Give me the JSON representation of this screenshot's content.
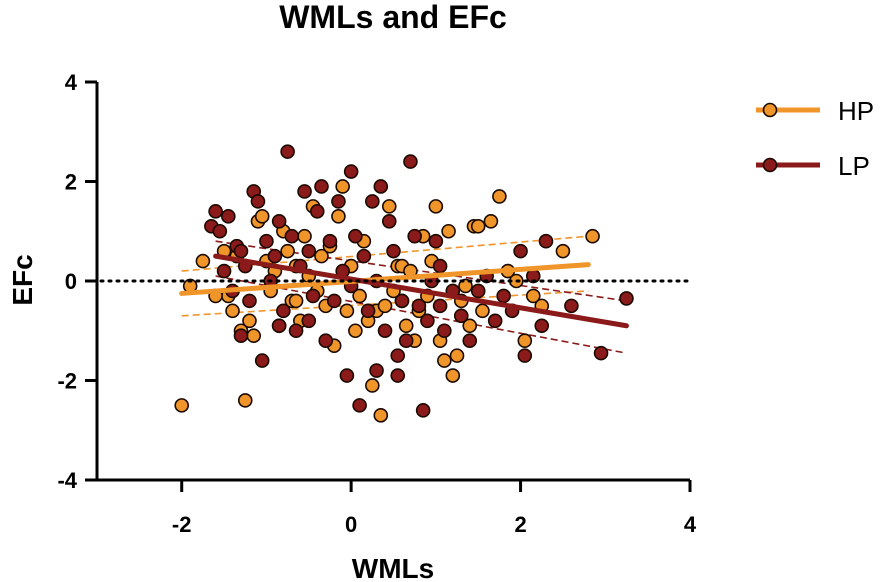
{
  "chart_data": {
    "type": "scatter",
    "title": "WMLs and EFc",
    "xlabel": "WMLs",
    "ylabel": "EFc",
    "xlim": [
      -3,
      4
    ],
    "ylim": [
      -4,
      4
    ],
    "xticks": [
      -2,
      0,
      2,
      4
    ],
    "yticks": [
      -4,
      -2,
      0,
      2,
      4
    ],
    "x_tick_labels": [
      "-2",
      "0",
      "2",
      "4"
    ],
    "y_tick_labels": [
      "-4",
      "-2",
      "0",
      "2",
      "4"
    ],
    "reference_line": {
      "y": 0,
      "style": "dotted"
    },
    "legend_position": "top-right",
    "series": [
      {
        "name": "HP",
        "color": "#F0952A",
        "fit": {
          "x": [
            -2.0,
            2.8
          ],
          "y": [
            -0.25,
            0.33
          ]
        },
        "ci_upper": {
          "x": [
            -2.0,
            2.8
          ],
          "y": [
            0.2,
            0.9
          ]
        },
        "ci_lower": {
          "x": [
            -2.0,
            2.8
          ],
          "y": [
            -0.7,
            -0.2
          ]
        },
        "points": [
          [
            -2.0,
            -2.5
          ],
          [
            -1.9,
            -0.1
          ],
          [
            -1.75,
            0.4
          ],
          [
            -1.5,
            0.6
          ],
          [
            -1.45,
            -0.3
          ],
          [
            -1.4,
            -0.6
          ],
          [
            -1.35,
            0.5
          ],
          [
            -1.3,
            -1.0
          ],
          [
            -1.25,
            -2.4
          ],
          [
            -1.2,
            -0.8
          ],
          [
            -1.15,
            -1.1
          ],
          [
            -1.1,
            1.2
          ],
          [
            -1.05,
            1.3
          ],
          [
            -1.0,
            0.4
          ],
          [
            -0.95,
            -0.2
          ],
          [
            -0.9,
            0.2
          ],
          [
            -0.85,
            -0.9
          ],
          [
            -0.8,
            1.0
          ],
          [
            -0.75,
            0.6
          ],
          [
            -0.7,
            -0.4
          ],
          [
            -0.65,
            0.3
          ],
          [
            -0.6,
            -0.8
          ],
          [
            -0.55,
            0.9
          ],
          [
            -0.5,
            0.1
          ],
          [
            -0.45,
            1.5
          ],
          [
            -0.4,
            -0.2
          ],
          [
            -0.35,
            0.5
          ],
          [
            -0.3,
            -0.5
          ],
          [
            -0.25,
            0.7
          ],
          [
            -0.2,
            -1.3
          ],
          [
            -0.15,
            1.3
          ],
          [
            -0.1,
            1.9
          ],
          [
            -0.05,
            -0.6
          ],
          [
            0.0,
            0.3
          ],
          [
            0.05,
            -1.0
          ],
          [
            0.1,
            -0.3
          ],
          [
            0.15,
            0.8
          ],
          [
            0.2,
            -0.8
          ],
          [
            0.25,
            -2.1
          ],
          [
            0.3,
            -0.6
          ],
          [
            0.35,
            -2.7
          ],
          [
            0.4,
            -0.5
          ],
          [
            0.45,
            1.5
          ],
          [
            0.5,
            -0.2
          ],
          [
            0.55,
            0.3
          ],
          [
            0.6,
            0.3
          ],
          [
            0.65,
            -0.9
          ],
          [
            0.7,
            0.2
          ],
          [
            0.75,
            -1.2
          ],
          [
            0.8,
            -0.6
          ],
          [
            0.85,
            0.9
          ],
          [
            0.9,
            -0.3
          ],
          [
            0.95,
            0.4
          ],
          [
            1.0,
            1.5
          ],
          [
            1.05,
            -1.2
          ],
          [
            1.1,
            -1.6
          ],
          [
            1.15,
            1.0
          ],
          [
            1.2,
            -1.9
          ],
          [
            1.25,
            -1.5
          ],
          [
            1.3,
            -0.4
          ],
          [
            1.35,
            -0.1
          ],
          [
            1.4,
            -0.9
          ],
          [
            1.45,
            1.1
          ],
          [
            1.5,
            1.1
          ],
          [
            1.55,
            -0.6
          ],
          [
            1.65,
            1.2
          ],
          [
            1.75,
            1.7
          ],
          [
            1.85,
            0.2
          ],
          [
            1.95,
            0.0
          ],
          [
            2.05,
            -1.2
          ],
          [
            2.15,
            -0.3
          ],
          [
            2.25,
            -0.5
          ],
          [
            2.5,
            0.6
          ],
          [
            2.85,
            0.9
          ],
          [
            -0.65,
            -0.4
          ],
          [
            0.6,
            -0.4
          ],
          [
            -1.6,
            -0.3
          ]
        ]
      },
      {
        "name": "LP",
        "color": "#8B1A1A",
        "fit": {
          "x": [
            -1.6,
            3.25
          ],
          "y": [
            0.5,
            -0.9
          ]
        },
        "ci_upper": {
          "x": [
            -1.6,
            3.25
          ],
          "y": [
            0.8,
            -0.4
          ]
        },
        "ci_lower": {
          "x": [
            -1.6,
            3.25
          ],
          "y": [
            0.1,
            -1.45
          ]
        },
        "points": [
          [
            -1.65,
            1.1
          ],
          [
            -1.6,
            1.4
          ],
          [
            -1.55,
            1.0
          ],
          [
            -1.5,
            0.2
          ],
          [
            -1.45,
            1.3
          ],
          [
            -1.4,
            -0.2
          ],
          [
            -1.35,
            0.7
          ],
          [
            -1.3,
            0.6
          ],
          [
            -1.25,
            0.3
          ],
          [
            -1.2,
            -0.4
          ],
          [
            -1.15,
            1.8
          ],
          [
            -1.1,
            1.6
          ],
          [
            -1.05,
            -1.6
          ],
          [
            -1.0,
            0.8
          ],
          [
            -0.95,
            0.0
          ],
          [
            -0.9,
            0.5
          ],
          [
            -0.85,
            1.2
          ],
          [
            -0.8,
            -0.6
          ],
          [
            -0.75,
            2.6
          ],
          [
            -0.7,
            0.9
          ],
          [
            -0.65,
            -1.0
          ],
          [
            -0.6,
            0.3
          ],
          [
            -0.55,
            1.8
          ],
          [
            -0.5,
            0.6
          ],
          [
            -0.45,
            -0.3
          ],
          [
            -0.4,
            1.4
          ],
          [
            -0.35,
            1.9
          ],
          [
            -0.3,
            -1.2
          ],
          [
            -0.25,
            0.8
          ],
          [
            -0.2,
            -0.4
          ],
          [
            -0.15,
            1.6
          ],
          [
            -0.1,
            0.2
          ],
          [
            -0.05,
            -1.9
          ],
          [
            0.0,
            2.2
          ],
          [
            0.05,
            0.9
          ],
          [
            0.1,
            -2.5
          ],
          [
            0.15,
            0.5
          ],
          [
            0.2,
            -0.6
          ],
          [
            0.25,
            1.6
          ],
          [
            0.3,
            0.0
          ],
          [
            0.35,
            1.9
          ],
          [
            0.4,
            -1.0
          ],
          [
            0.45,
            1.2
          ],
          [
            0.5,
            0.6
          ],
          [
            0.55,
            -1.5
          ],
          [
            0.6,
            -0.4
          ],
          [
            0.65,
            -1.2
          ],
          [
            0.7,
            2.4
          ],
          [
            0.75,
            0.9
          ],
          [
            0.8,
            -0.5
          ],
          [
            0.85,
            -2.6
          ],
          [
            0.9,
            -0.8
          ],
          [
            0.95,
            0.0
          ],
          [
            1.0,
            0.8
          ],
          [
            1.05,
            -0.5
          ],
          [
            1.1,
            -1.0
          ],
          [
            1.2,
            -0.2
          ],
          [
            1.3,
            -0.7
          ],
          [
            1.4,
            -1.2
          ],
          [
            1.5,
            -0.2
          ],
          [
            1.6,
            0.1
          ],
          [
            1.7,
            -0.8
          ],
          [
            1.8,
            -0.3
          ],
          [
            1.9,
            -0.6
          ],
          [
            2.0,
            0.6
          ],
          [
            2.05,
            -1.5
          ],
          [
            2.15,
            0.1
          ],
          [
            2.25,
            -0.9
          ],
          [
            2.3,
            0.8
          ],
          [
            2.6,
            -0.5
          ],
          [
            2.95,
            -1.45
          ],
          [
            3.25,
            -0.35
          ],
          [
            -0.85,
            -0.9
          ],
          [
            0.3,
            -1.8
          ],
          [
            -1.3,
            -1.1
          ],
          [
            0.0,
            -0.1
          ],
          [
            -0.5,
            -0.8
          ],
          [
            0.55,
            -1.9
          ],
          [
            1.05,
            0.3
          ]
        ]
      }
    ]
  }
}
